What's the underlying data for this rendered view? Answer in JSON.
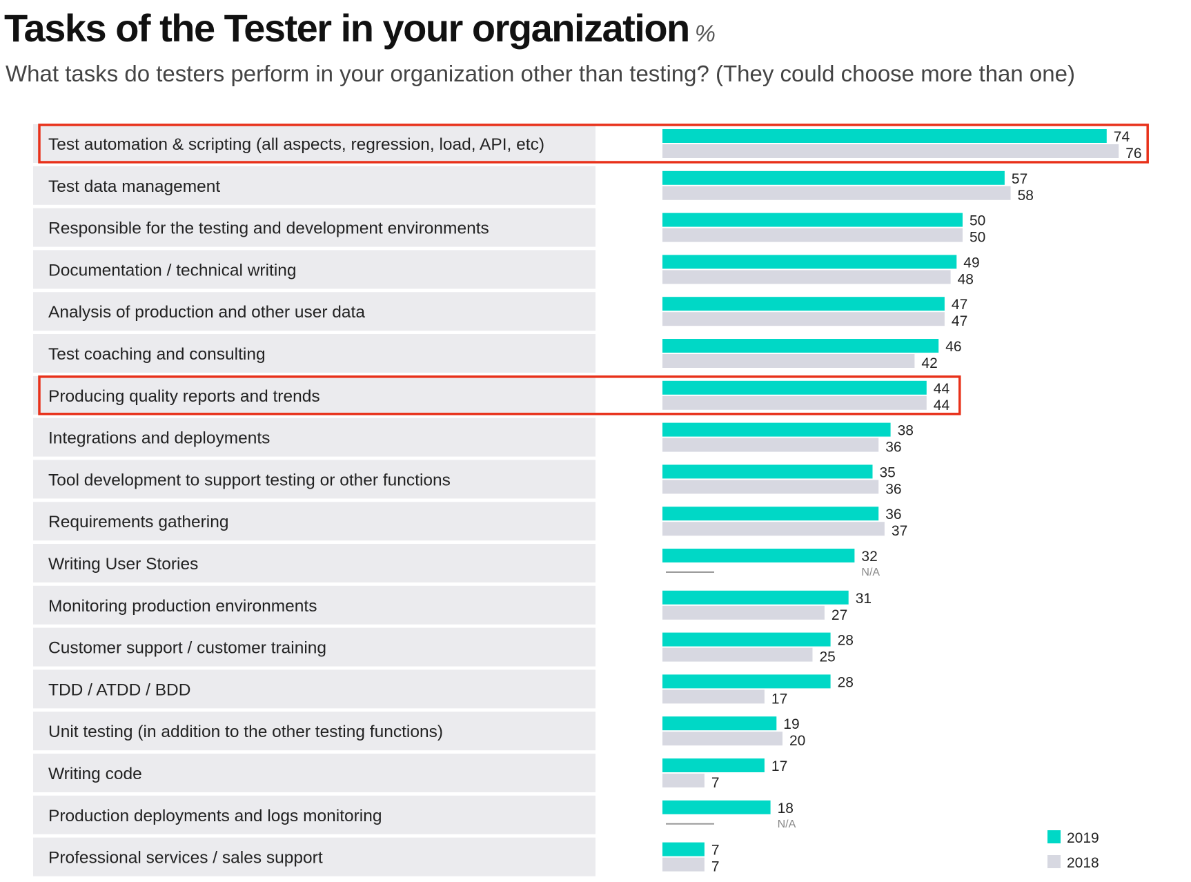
{
  "header": {
    "title": "Tasks of the Tester in your organization",
    "unit": "%",
    "subtitle": "What tasks do testers perform in your organization other than testing? (They could choose more than one)"
  },
  "colors": {
    "series_2019": "#00d8c6",
    "series_2018": "#d7d8e1",
    "label_bg": "#ebebee",
    "highlight": "#e8311a",
    "na_line": "#999999"
  },
  "chart_data": {
    "type": "bar",
    "orientation": "horizontal",
    "title": "Tasks of the Tester in your organization",
    "subtitle": "What tasks do testers perform in your organization other than testing? (They could choose more than one)",
    "unit": "%",
    "categories": [
      "Test automation & scripting (all aspects, regression, load, API, etc)",
      "Test data management",
      "Responsible for the testing and development environments",
      "Documentation / technical writing",
      "Analysis of production and other user data",
      "Test coaching and consulting",
      "Producing quality reports and trends",
      "Integrations and deployments",
      "Tool development to support testing or other functions",
      "Requirements gathering",
      "Writing User Stories",
      "Monitoring production environments",
      "Customer support / customer training",
      "TDD / ATDD / BDD",
      "Unit testing (in addition to the other testing functions)",
      "Writing code",
      "Production deployments and logs monitoring",
      "Professional services / sales support"
    ],
    "series": [
      {
        "name": "2019",
        "values": [
          74,
          57,
          50,
          49,
          47,
          46,
          44,
          38,
          35,
          36,
          32,
          31,
          28,
          28,
          19,
          17,
          18,
          7
        ]
      },
      {
        "name": "2018",
        "values": [
          76,
          58,
          50,
          48,
          47,
          42,
          44,
          36,
          36,
          37,
          null,
          27,
          25,
          17,
          20,
          7,
          null,
          7
        ]
      }
    ],
    "missing_label": "N/A",
    "highlighted": [
      "Test automation & scripting (all aspects, regression, load, API, etc)",
      "Producing quality reports and trends"
    ],
    "xlim": [
      0,
      80
    ],
    "legend_position": "bottom-right",
    "grid": false
  }
}
